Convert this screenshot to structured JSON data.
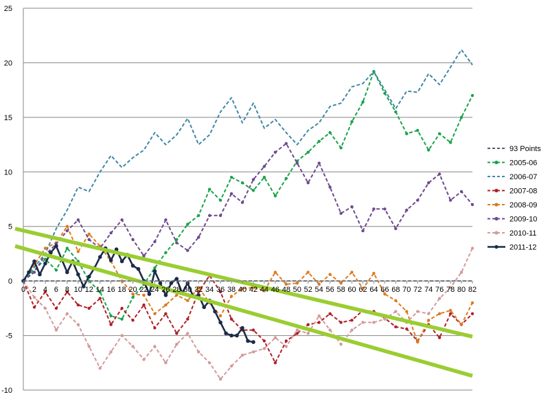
{
  "chart_data": {
    "type": "line",
    "title": "",
    "xlabel": "",
    "ylabel": "",
    "xlim": [
      0,
      82
    ],
    "ylim": [
      -10,
      25
    ],
    "x_ticks": [
      0,
      2,
      4,
      6,
      8,
      10,
      12,
      14,
      16,
      18,
      20,
      22,
      24,
      26,
      28,
      30,
      32,
      34,
      36,
      38,
      40,
      42,
      44,
      46,
      48,
      50,
      52,
      54,
      56,
      58,
      60,
      62,
      64,
      66,
      68,
      70,
      72,
      74,
      76,
      78,
      80,
      82
    ],
    "y_ticks": [
      -10,
      -5,
      0,
      5,
      10,
      15,
      20,
      25
    ],
    "grid": "horizontal",
    "legend_position": "right",
    "series": [
      {
        "name": "93 Points",
        "color": "#4f5d73",
        "style": "dashed",
        "markers": false,
        "points": [
          [
            0,
            0
          ],
          [
            82,
            0
          ]
        ]
      },
      {
        "name": "2005-06",
        "color": "#1aa34a",
        "style": "dashed",
        "markers": true,
        "points": [
          [
            0,
            0
          ],
          [
            4,
            2
          ],
          [
            6,
            1
          ],
          [
            8,
            3
          ],
          [
            10,
            1.8
          ],
          [
            12,
            0
          ],
          [
            14,
            -1
          ],
          [
            16,
            -3.2
          ],
          [
            18,
            -3.5
          ],
          [
            20,
            -1.5
          ],
          [
            22,
            -0.3
          ],
          [
            24,
            1.2
          ],
          [
            26,
            2.6
          ],
          [
            28,
            3.8
          ],
          [
            30,
            5.2
          ],
          [
            32,
            6
          ],
          [
            34,
            8.4
          ],
          [
            36,
            7.4
          ],
          [
            38,
            9.5
          ],
          [
            40,
            9
          ],
          [
            42,
            8.3
          ],
          [
            44,
            9.5
          ],
          [
            46,
            7.8
          ],
          [
            48,
            9.4
          ],
          [
            50,
            11
          ],
          [
            52,
            11.8
          ],
          [
            54,
            12.8
          ],
          [
            56,
            13.6
          ],
          [
            58,
            12.2
          ],
          [
            60,
            14.6
          ],
          [
            62,
            16.4
          ],
          [
            64,
            19.2
          ],
          [
            66,
            17.2
          ],
          [
            68,
            15.5
          ],
          [
            70,
            13.5
          ],
          [
            72,
            13.8
          ],
          [
            74,
            12
          ],
          [
            76,
            13.5
          ],
          [
            78,
            12.7
          ],
          [
            80,
            15
          ],
          [
            82,
            17
          ]
        ]
      },
      {
        "name": "2006-07",
        "color": "#3e87a6",
        "style": "dashed",
        "markers": false,
        "points": [
          [
            0,
            0
          ],
          [
            4,
            2.5
          ],
          [
            6,
            4.8
          ],
          [
            8,
            6.5
          ],
          [
            10,
            8.6
          ],
          [
            12,
            8.2
          ],
          [
            14,
            10
          ],
          [
            16,
            11.5
          ],
          [
            18,
            10.4
          ],
          [
            20,
            11.3
          ],
          [
            22,
            12
          ],
          [
            24,
            13.6
          ],
          [
            26,
            12.5
          ],
          [
            28,
            13.4
          ],
          [
            30,
            14.9
          ],
          [
            32,
            12.5
          ],
          [
            34,
            13.4
          ],
          [
            36,
            15.5
          ],
          [
            38,
            16.8
          ],
          [
            40,
            14.5
          ],
          [
            42,
            16.3
          ],
          [
            44,
            14
          ],
          [
            46,
            14.8
          ],
          [
            48,
            13.6
          ],
          [
            50,
            12.5
          ],
          [
            52,
            13.8
          ],
          [
            54,
            14.5
          ],
          [
            56,
            16
          ],
          [
            58,
            16.3
          ],
          [
            60,
            17.8
          ],
          [
            62,
            18.1
          ],
          [
            64,
            19.2
          ],
          [
            66,
            17.5
          ],
          [
            68,
            15.8
          ],
          [
            70,
            17.4
          ],
          [
            72,
            17.3
          ],
          [
            74,
            19
          ],
          [
            76,
            18
          ],
          [
            78,
            19.6
          ],
          [
            80,
            21.2
          ],
          [
            82,
            19.8
          ]
        ]
      },
      {
        "name": "2007-08",
        "color": "#b02028",
        "style": "dashed",
        "markers": true,
        "points": [
          [
            0,
            0
          ],
          [
            2,
            -2.4
          ],
          [
            4,
            -1
          ],
          [
            6,
            -2.5
          ],
          [
            8,
            -1
          ],
          [
            10,
            -2.2
          ],
          [
            12,
            -2.5
          ],
          [
            14,
            -1.6
          ],
          [
            16,
            -4
          ],
          [
            18,
            -2.5
          ],
          [
            20,
            -3.6
          ],
          [
            22,
            -2.2
          ],
          [
            24,
            -4.3
          ],
          [
            26,
            -3
          ],
          [
            28,
            -4.8
          ],
          [
            30,
            -3.5
          ],
          [
            32,
            -1
          ],
          [
            34,
            0.5
          ],
          [
            36,
            -1
          ],
          [
            38,
            -3.5
          ],
          [
            40,
            -4.5
          ],
          [
            42,
            -4.5
          ],
          [
            44,
            -5.5
          ],
          [
            46,
            -7.5
          ],
          [
            48,
            -5.5
          ],
          [
            50,
            -4.8
          ],
          [
            52,
            -4
          ],
          [
            54,
            -3.8
          ],
          [
            56,
            -3
          ],
          [
            58,
            -3.8
          ],
          [
            60,
            -3.6
          ],
          [
            62,
            -2.7
          ],
          [
            64,
            -2.8
          ],
          [
            66,
            -3.4
          ],
          [
            68,
            -4.2
          ],
          [
            70,
            -4.4
          ],
          [
            72,
            -5.5
          ],
          [
            74,
            -4
          ],
          [
            76,
            -5.2
          ],
          [
            78,
            -3
          ],
          [
            80,
            -4
          ],
          [
            82,
            -3
          ]
        ]
      },
      {
        "name": "2008-09",
        "color": "#de7a20",
        "style": "dashed",
        "markers": true,
        "points": [
          [
            0,
            0
          ],
          [
            2,
            1.5
          ],
          [
            4,
            3
          ],
          [
            6,
            3.5
          ],
          [
            8,
            5
          ],
          [
            10,
            2.7
          ],
          [
            12,
            4.3
          ],
          [
            14,
            3.2
          ],
          [
            16,
            1.8
          ],
          [
            18,
            0
          ],
          [
            20,
            -1.2
          ],
          [
            22,
            -1.3
          ],
          [
            24,
            -3
          ],
          [
            26,
            -2.2
          ],
          [
            28,
            -1.3
          ],
          [
            30,
            -1.8
          ],
          [
            32,
            -0.6
          ],
          [
            34,
            -2
          ],
          [
            36,
            -3.2
          ],
          [
            38,
            -1.4
          ],
          [
            40,
            -0.7
          ],
          [
            42,
            -0.6
          ],
          [
            44,
            -0.9
          ],
          [
            46,
            0.8
          ],
          [
            48,
            -0.3
          ],
          [
            50,
            -0.2
          ],
          [
            52,
            0.8
          ],
          [
            54,
            -0.3
          ],
          [
            56,
            0.6
          ],
          [
            58,
            -0.2
          ],
          [
            60,
            0.8
          ],
          [
            62,
            -0.7
          ],
          [
            64,
            0.7
          ],
          [
            66,
            -1.2
          ],
          [
            68,
            -1.8
          ],
          [
            70,
            -2.8
          ],
          [
            72,
            -5.6
          ],
          [
            74,
            -3.6
          ],
          [
            76,
            -3
          ],
          [
            78,
            -2.7
          ],
          [
            80,
            -4
          ],
          [
            82,
            -2
          ]
        ]
      },
      {
        "name": "2009-10",
        "color": "#6e4a8e",
        "style": "dashed",
        "markers": true,
        "points": [
          [
            0,
            0
          ],
          [
            2,
            0.8
          ],
          [
            4,
            2.4
          ],
          [
            6,
            3.4
          ],
          [
            8,
            4.6
          ],
          [
            10,
            5.6
          ],
          [
            12,
            3.8
          ],
          [
            14,
            3
          ],
          [
            16,
            4.4
          ],
          [
            18,
            5.6
          ],
          [
            20,
            3.8
          ],
          [
            22,
            2.3
          ],
          [
            24,
            3.6
          ],
          [
            26,
            5.6
          ],
          [
            28,
            3.5
          ],
          [
            30,
            2.8
          ],
          [
            32,
            4
          ],
          [
            34,
            6
          ],
          [
            36,
            6
          ],
          [
            38,
            8
          ],
          [
            40,
            7.2
          ],
          [
            42,
            9.3
          ],
          [
            44,
            10.5
          ],
          [
            46,
            11.8
          ],
          [
            48,
            12.6
          ],
          [
            50,
            10.8
          ],
          [
            52,
            9
          ],
          [
            54,
            10.8
          ],
          [
            56,
            8.6
          ],
          [
            58,
            6.2
          ],
          [
            60,
            6.8
          ],
          [
            62,
            4.6
          ],
          [
            64,
            6.6
          ],
          [
            66,
            6.6
          ],
          [
            68,
            4.8
          ],
          [
            70,
            6.5
          ],
          [
            72,
            7.4
          ],
          [
            74,
            9
          ],
          [
            76,
            9.8
          ],
          [
            78,
            7.4
          ],
          [
            80,
            8.2
          ],
          [
            82,
            7
          ]
        ]
      },
      {
        "name": "2010-11",
        "color": "#d49a9a",
        "style": "dashed",
        "markers": true,
        "points": [
          [
            0,
            0
          ],
          [
            2,
            -1.5
          ],
          [
            4,
            -2.5
          ],
          [
            6,
            -4.5
          ],
          [
            8,
            -3
          ],
          [
            10,
            -4
          ],
          [
            12,
            -6
          ],
          [
            14,
            -8
          ],
          [
            16,
            -6.5
          ],
          [
            18,
            -5
          ],
          [
            20,
            -6
          ],
          [
            22,
            -7.2
          ],
          [
            24,
            -6
          ],
          [
            26,
            -7.5
          ],
          [
            28,
            -5.8
          ],
          [
            30,
            -4.8
          ],
          [
            32,
            -6.5
          ],
          [
            34,
            -7.5
          ],
          [
            36,
            -9
          ],
          [
            38,
            -7.8
          ],
          [
            40,
            -6.8
          ],
          [
            42,
            -6.5
          ],
          [
            44,
            -6.2
          ],
          [
            46,
            -5.2
          ],
          [
            48,
            -6
          ],
          [
            50,
            -4.5
          ],
          [
            52,
            -4.8
          ],
          [
            54,
            -3.2
          ],
          [
            56,
            -4.5
          ],
          [
            58,
            -5.8
          ],
          [
            60,
            -4.5
          ],
          [
            62,
            -3.8
          ],
          [
            64,
            -3.8
          ],
          [
            66,
            -3.5
          ],
          [
            68,
            -2.8
          ],
          [
            70,
            -3.8
          ],
          [
            72,
            -2.8
          ],
          [
            74,
            -3
          ],
          [
            76,
            -1.6
          ],
          [
            78,
            -0.6
          ],
          [
            80,
            0.8
          ],
          [
            82,
            3
          ]
        ]
      },
      {
        "name": "2011-12",
        "color": "#1c2b4a",
        "style": "solid",
        "markers": true,
        "points": [
          [
            0,
            0
          ],
          [
            1,
            0.8
          ],
          [
            2,
            1.8
          ],
          [
            3,
            0.6
          ],
          [
            4,
            1.6
          ],
          [
            5,
            2.6
          ],
          [
            6,
            3.2
          ],
          [
            7,
            2
          ],
          [
            8,
            0.8
          ],
          [
            9,
            1.8
          ],
          [
            10,
            0.6
          ],
          [
            11,
            -0.5
          ],
          [
            12,
            0.4
          ],
          [
            13,
            1.2
          ],
          [
            14,
            2.2
          ],
          [
            15,
            3
          ],
          [
            16,
            1.9
          ],
          [
            17,
            2.9
          ],
          [
            18,
            1.8
          ],
          [
            19,
            2.4
          ],
          [
            20,
            1.4
          ],
          [
            21,
            1.1
          ],
          [
            22,
            0
          ],
          [
            23,
            -1.2
          ],
          [
            24,
            0.9
          ],
          [
            25,
            -0.2
          ],
          [
            26,
            -1.3
          ],
          [
            27,
            -0.2
          ],
          [
            28,
            0.2
          ],
          [
            29,
            -1.1
          ],
          [
            30,
            -0.2
          ],
          [
            31,
            -1.4
          ],
          [
            32,
            -1.3
          ],
          [
            33,
            -2.4
          ],
          [
            34,
            -1.8
          ],
          [
            35,
            -2.8
          ],
          [
            36,
            -3.8
          ],
          [
            37,
            -4.8
          ],
          [
            38,
            -5
          ],
          [
            39,
            -5
          ],
          [
            40,
            -4.3
          ],
          [
            41,
            -5.5
          ],
          [
            42,
            -5.6
          ]
        ]
      }
    ],
    "trendlines": [
      {
        "color": "#9acd32",
        "points": [
          [
            -1.5,
            4.8
          ],
          [
            82,
            -5.1
          ]
        ]
      },
      {
        "color": "#9acd32",
        "points": [
          [
            -1.5,
            3.2
          ],
          [
            82,
            -8.7
          ]
        ]
      }
    ]
  }
}
